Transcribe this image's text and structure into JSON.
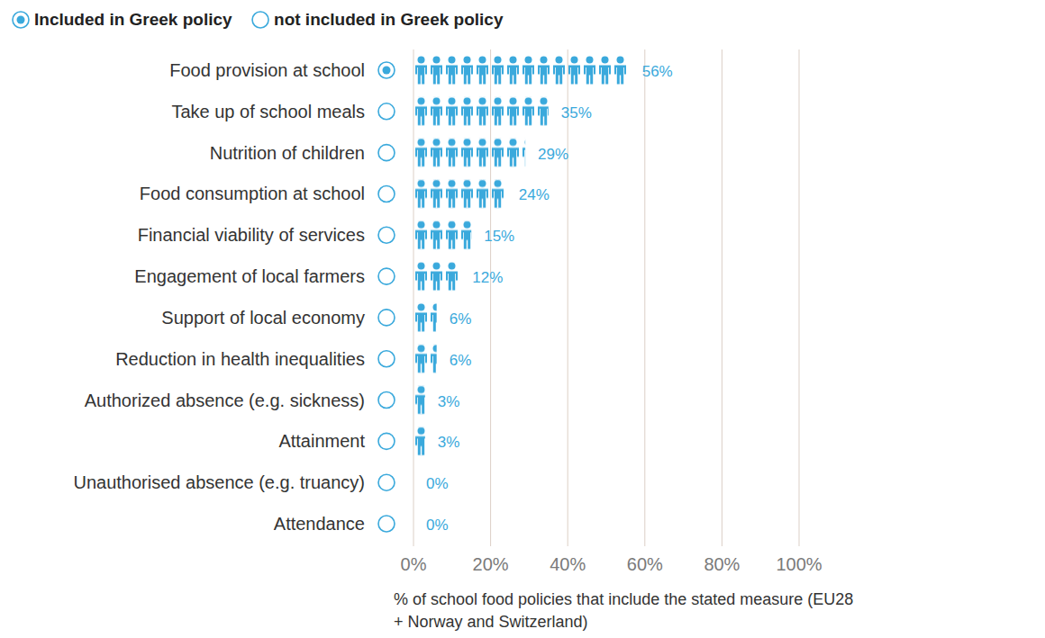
{
  "chart_data": {
    "type": "bar",
    "orientation": "horizontal",
    "categories": [
      "Food provision at school",
      "Take up of school meals",
      "Nutrition of children",
      "Food consumption at school",
      "Financial viability of services",
      "Engagement of local farmers",
      "Support of local economy",
      "Reduction in health inequalities",
      "Authorized absence (e.g. sickness)",
      "Attainment",
      "Unauthorised absence (e.g. truancy)",
      "Attendance"
    ],
    "values": [
      56,
      35,
      29,
      24,
      15,
      12,
      6,
      6,
      3,
      3,
      0,
      0
    ],
    "value_labels": [
      "56%",
      "35%",
      "29%",
      "24%",
      "15%",
      "12%",
      "6%",
      "6%",
      "3%",
      "3%",
      "0%",
      "0%"
    ],
    "data_labels": true,
    "included": [
      true,
      false,
      false,
      false,
      false,
      false,
      false,
      false,
      false,
      false,
      false,
      false
    ],
    "legend_labels": [
      "Included in Greek policy",
      "not included in Greek policy"
    ],
    "legend": "top-left",
    "color": "#3aa9dc",
    "xlim": [
      0,
      100
    ],
    "xticks": [
      {
        "value": 0,
        "label": "0%"
      },
      {
        "value": 20,
        "label": "20%"
      },
      {
        "value": 40,
        "label": "40%"
      },
      {
        "value": 60,
        "label": "60%"
      },
      {
        "value": 80,
        "label": "80%"
      },
      {
        "value": 100,
        "label": "100%"
      }
    ],
    "grid": true,
    "xlabel": "% of school food policies that include the stated measure (EU28 + Norway and Switzerland)"
  }
}
